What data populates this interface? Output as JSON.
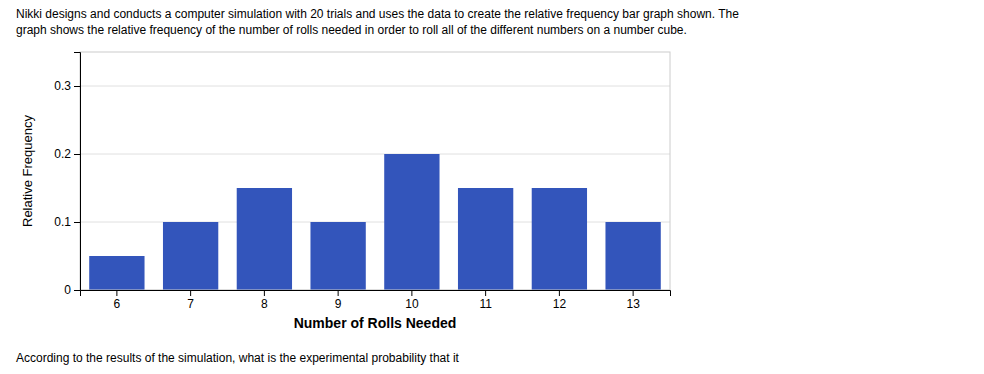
{
  "chart_data": {
    "type": "bar",
    "title": "Nikki designs and conducts a computer simulation with 20 trials and uses the data to create the relative frequency bar graph shown. The",
    "subtitle": "graph shows the relative frequency of the number of rolls needed in order to roll all of the different numbers on a number cube.",
    "annotations": [
      "According to the results of the simulation, what is the experimental probability that it"
    ],
    "xlabel": "Number of Rolls Needed",
    "ylabel": "Relative Frequency",
    "categories": [
      6,
      7,
      8,
      9,
      10,
      11,
      12,
      13
    ],
    "values": [
      0.05,
      0.1,
      0.15,
      0.1,
      0.2,
      0.15,
      0.15,
      0.1
    ],
    "color": "#3355BB",
    "ylim": [
      0,
      0.35
    ],
    "yticks": [
      0,
      0.1,
      0.2,
      0.3
    ],
    "grid": true
  }
}
